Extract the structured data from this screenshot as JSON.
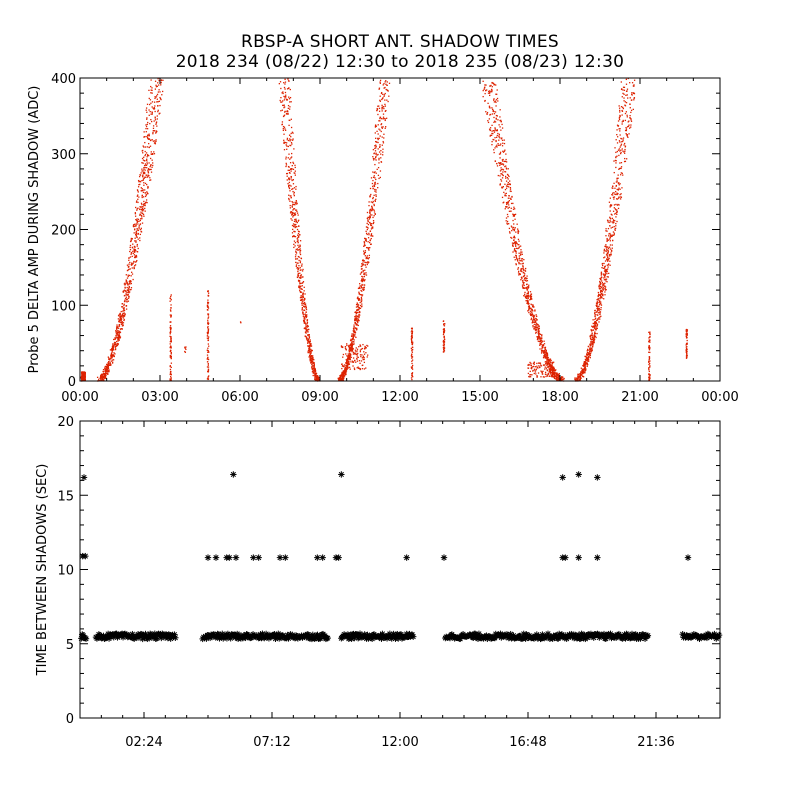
{
  "title": "RBSP-A SHORT ANT. SHADOW TIMES",
  "subtitle": "2018 234 (08/22) 12:30 to 2018 235 (08/23) 12:30",
  "colors": {
    "top_series": "#dd2200",
    "bottom_series": "#000000",
    "axes": "#000000"
  },
  "chart_data": [
    {
      "type": "scatter",
      "ylabel": "Probe 5 DELTA AMP DURING SHADOW (ADC)",
      "xlim": [
        0,
        24
      ],
      "ylim": [
        0,
        400
      ],
      "x_ticks": [
        "00:00",
        "03:00",
        "06:00",
        "09:00",
        "12:00",
        "15:00",
        "18:00",
        "21:00",
        "00:00"
      ],
      "y_ticks": [
        "0",
        "100",
        "200",
        "300",
        "400"
      ],
      "marker": "dot",
      "color": "#dd2200",
      "clusters": [
        {
          "x": [
            0.05,
            0.2
          ],
          "y": [
            0,
            12
          ]
        },
        {
          "x": [
            0.7,
            2.0
          ],
          "y": [
            0,
            200
          ]
        },
        {
          "x": [
            2.0,
            2.85
          ],
          "y": [
            150,
            400
          ]
        },
        {
          "x": [
            3.35,
            3.45
          ],
          "y": [
            0,
            118
          ]
        },
        {
          "x": [
            3.9,
            4.0
          ],
          "y": [
            30,
            45
          ]
        },
        {
          "x": [
            4.75,
            4.85
          ],
          "y": [
            0,
            120
          ]
        },
        {
          "x": [
            6.0,
            6.05
          ],
          "y": [
            75,
            80
          ]
        },
        {
          "x": [
            7.6,
            7.7
          ],
          "y": [
            200,
            400
          ]
        },
        {
          "x": [
            7.7,
            9.0
          ],
          "y": [
            0,
            200
          ]
        },
        {
          "x": [
            9.6,
            11.0
          ],
          "y": [
            0,
            150
          ]
        },
        {
          "x": [
            11.0,
            11.5
          ],
          "y": [
            100,
            400
          ]
        },
        {
          "x": [
            12.4,
            12.5
          ],
          "y": [
            0,
            70
          ]
        },
        {
          "x": [
            13.6,
            13.7
          ],
          "y": [
            35,
            80
          ]
        },
        {
          "x": [
            15.3,
            16.3
          ],
          "y": [
            120,
            400
          ]
        },
        {
          "x": [
            16.3,
            18.1
          ],
          "y": [
            0,
            120
          ]
        },
        {
          "x": [
            18.6,
            20.0
          ],
          "y": [
            0,
            250
          ]
        },
        {
          "x": [
            20.0,
            20.6
          ],
          "y": [
            200,
            400
          ]
        },
        {
          "x": [
            21.3,
            21.4
          ],
          "y": [
            0,
            65
          ]
        },
        {
          "x": [
            22.7,
            22.8
          ],
          "y": [
            30,
            70
          ]
        }
      ]
    },
    {
      "type": "scatter",
      "ylabel": "TIME BETWEEN SHADOWS (SEC)",
      "xlim": [
        0,
        24
      ],
      "ylim": [
        0,
        20
      ],
      "x_ticks": [
        "02:24",
        "07:12",
        "12:00",
        "16:48",
        "21:36"
      ],
      "x_tick_values": [
        2.4,
        7.2,
        12.0,
        16.8,
        21.6
      ],
      "y_ticks": [
        "0",
        "5",
        "10",
        "15",
        "20"
      ],
      "marker": "asterisk",
      "color": "#000000",
      "baseline_value": 5.5,
      "baseline_segments": [
        [
          0.05,
          0.25
        ],
        [
          0.6,
          3.6
        ],
        [
          4.6,
          9.3
        ],
        [
          9.8,
          12.5
        ],
        [
          13.7,
          21.3
        ],
        [
          22.6,
          24.0
        ]
      ],
      "points": [
        {
          "x": 0.15,
          "y": 16.2
        },
        {
          "x": 0.1,
          "y": 10.9
        },
        {
          "x": 0.2,
          "y": 10.9
        },
        {
          "x": 4.8,
          "y": 10.8
        },
        {
          "x": 5.1,
          "y": 10.8
        },
        {
          "x": 5.5,
          "y": 10.8
        },
        {
          "x": 5.6,
          "y": 10.8
        },
        {
          "x": 5.75,
          "y": 16.4
        },
        {
          "x": 5.85,
          "y": 10.8
        },
        {
          "x": 6.5,
          "y": 10.8
        },
        {
          "x": 6.7,
          "y": 10.8
        },
        {
          "x": 7.5,
          "y": 10.8
        },
        {
          "x": 7.7,
          "y": 10.8
        },
        {
          "x": 8.9,
          "y": 10.8
        },
        {
          "x": 9.1,
          "y": 10.8
        },
        {
          "x": 9.6,
          "y": 10.8
        },
        {
          "x": 9.7,
          "y": 10.8
        },
        {
          "x": 9.8,
          "y": 16.4
        },
        {
          "x": 12.25,
          "y": 10.8
        },
        {
          "x": 13.65,
          "y": 10.8
        },
        {
          "x": 18.1,
          "y": 16.2
        },
        {
          "x": 18.1,
          "y": 10.8
        },
        {
          "x": 18.2,
          "y": 10.8
        },
        {
          "x": 18.7,
          "y": 16.4
        },
        {
          "x": 18.7,
          "y": 10.8
        },
        {
          "x": 19.4,
          "y": 16.2
        },
        {
          "x": 19.4,
          "y": 10.8
        },
        {
          "x": 22.8,
          "y": 10.8
        }
      ]
    }
  ]
}
